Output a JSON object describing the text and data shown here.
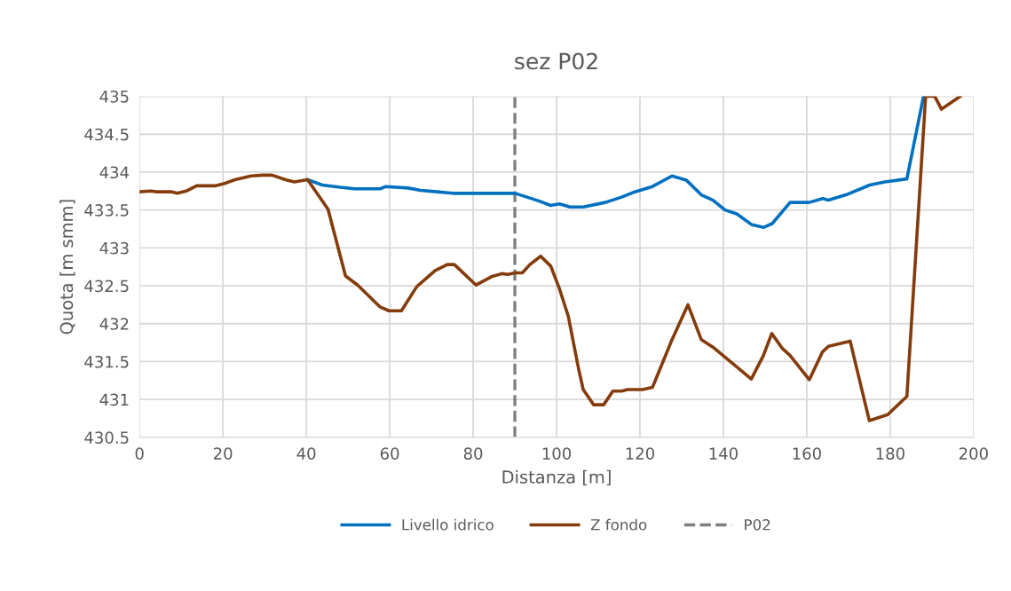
{
  "chart_data": {
    "type": "line",
    "title": "sez P02",
    "xlabel": "Distanza [m]",
    "ylabel": "Quota [m smm]",
    "xlim": [
      0,
      200
    ],
    "xticks": [
      0,
      20,
      40,
      60,
      80,
      100,
      120,
      140,
      160,
      180,
      200
    ],
    "ylim": [
      430.5,
      435
    ],
    "yticks": [
      430.5,
      431,
      431.5,
      432,
      432.5,
      433,
      433.5,
      434,
      434.5,
      435
    ],
    "grid": true,
    "legend": "bottom",
    "line_style": "solid",
    "marker": "none",
    "series": [
      {
        "name": "Livello idrico",
        "color": "#0070c0",
        "x": [
          40.3,
          43.8,
          48.1,
          51.6,
          57.7,
          59.1,
          64.4,
          67.4,
          71.3,
          75.5,
          80,
          90.1,
          92.9,
          95.7,
          98.6,
          100.7,
          103.2,
          106.4,
          111.7,
          115.6,
          118.8,
          123,
          127.7,
          131.2,
          134.7,
          137.5,
          140.4,
          143.2,
          146.7,
          149.6,
          151.7,
          156,
          160.6,
          163.8,
          165.2,
          169.4,
          175.1,
          178.7,
          184,
          188
        ],
        "values": [
          433.9,
          433.83,
          433.8,
          433.78,
          433.78,
          433.81,
          433.79,
          433.76,
          433.74,
          433.72,
          433.72,
          433.72,
          433.67,
          433.62,
          433.56,
          433.58,
          433.54,
          433.54,
          433.6,
          433.67,
          433.74,
          433.81,
          433.95,
          433.89,
          433.7,
          433.63,
          433.5,
          433.45,
          433.31,
          433.27,
          433.32,
          433.6,
          433.6,
          433.65,
          433.63,
          433.7,
          433.83,
          433.87,
          433.91,
          435
        ]
      },
      {
        "name": "Z fondo",
        "color": "#843c0c",
        "x": [
          0,
          2.7,
          4.1,
          7.7,
          9.1,
          11.2,
          13.7,
          18.3,
          20.4,
          22.9,
          26.8,
          29.6,
          31.8,
          35,
          37.1,
          40.3,
          45.2,
          49.4,
          52.3,
          57.7,
          59.8,
          62.8,
          66.5,
          70.9,
          73.8,
          75.5,
          80.7,
          84.4,
          86.9,
          88.3,
          90.1,
          91.8,
          93.6,
          96.2,
          98.6,
          100.7,
          102.8,
          105.3,
          106.4,
          108.9,
          111.3,
          113.5,
          115.6,
          117,
          120.6,
          123,
          127.7,
          131.5,
          134.7,
          137.5,
          146.7,
          149.6,
          151.6,
          154.2,
          156,
          160.6,
          163.8,
          165.2,
          170.4,
          175,
          179.4,
          184,
          188.5,
          190.7,
          192.3,
          196.8
        ],
        "values": [
          433.74,
          433.75,
          433.74,
          433.74,
          433.72,
          433.75,
          433.82,
          433.82,
          433.85,
          433.9,
          433.95,
          433.96,
          433.96,
          433.9,
          433.87,
          433.9,
          433.51,
          432.63,
          432.51,
          432.22,
          432.17,
          432.17,
          432.49,
          432.7,
          432.78,
          432.78,
          432.51,
          432.62,
          432.66,
          432.65,
          432.67,
          432.67,
          432.78,
          432.89,
          432.76,
          432.46,
          432.1,
          431.4,
          431.13,
          430.93,
          430.93,
          431.11,
          431.11,
          431.13,
          431.13,
          431.16,
          431.79,
          432.25,
          431.79,
          431.69,
          431.27,
          431.58,
          431.87,
          431.67,
          431.58,
          431.26,
          431.63,
          431.7,
          431.77,
          430.72,
          430.8,
          431.04,
          435,
          435,
          434.83,
          435
        ]
      }
    ],
    "ref_lines": [
      {
        "axis": "x",
        "value": 90,
        "label": "P02",
        "color": "#7f7f7f",
        "line_style": "dashed"
      }
    ]
  }
}
